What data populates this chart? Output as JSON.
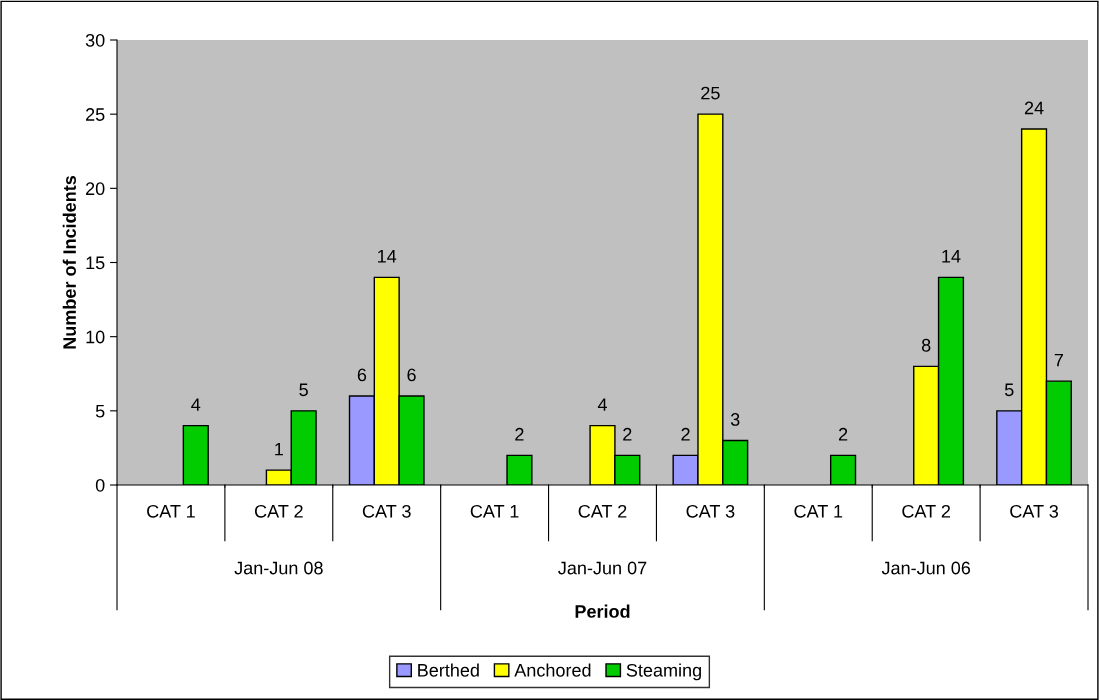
{
  "chart_data": {
    "type": "bar",
    "categories": [
      "CAT 1",
      "CAT 2",
      "CAT 3",
      "CAT 1",
      "CAT 2",
      "CAT 3",
      "CAT 1",
      "CAT 2",
      "CAT 3"
    ],
    "series": [
      {
        "name": "Berthed",
        "color": "#9999ff",
        "values": [
          null,
          null,
          6,
          null,
          null,
          2,
          null,
          null,
          5
        ]
      },
      {
        "name": "Anchored",
        "color": "#ffff00",
        "values": [
          null,
          1,
          14,
          null,
          4,
          25,
          null,
          8,
          24
        ]
      },
      {
        "name": "Steaming",
        "color": "#00cc00",
        "values": [
          4,
          5,
          6,
          2,
          2,
          3,
          2,
          14,
          7
        ]
      }
    ],
    "annotations": [
      "Jan-Jun 08",
      "Jan-Jun 07",
      "Jan-Jun 06"
    ],
    "xlabel": "Period",
    "ylabel": "Number of Incidents",
    "ylim": [
      0,
      30
    ],
    "yticks": [
      0,
      5,
      10,
      15,
      20,
      25,
      30
    ],
    "data_labels": true,
    "legend": "bottom",
    "grid": false
  }
}
